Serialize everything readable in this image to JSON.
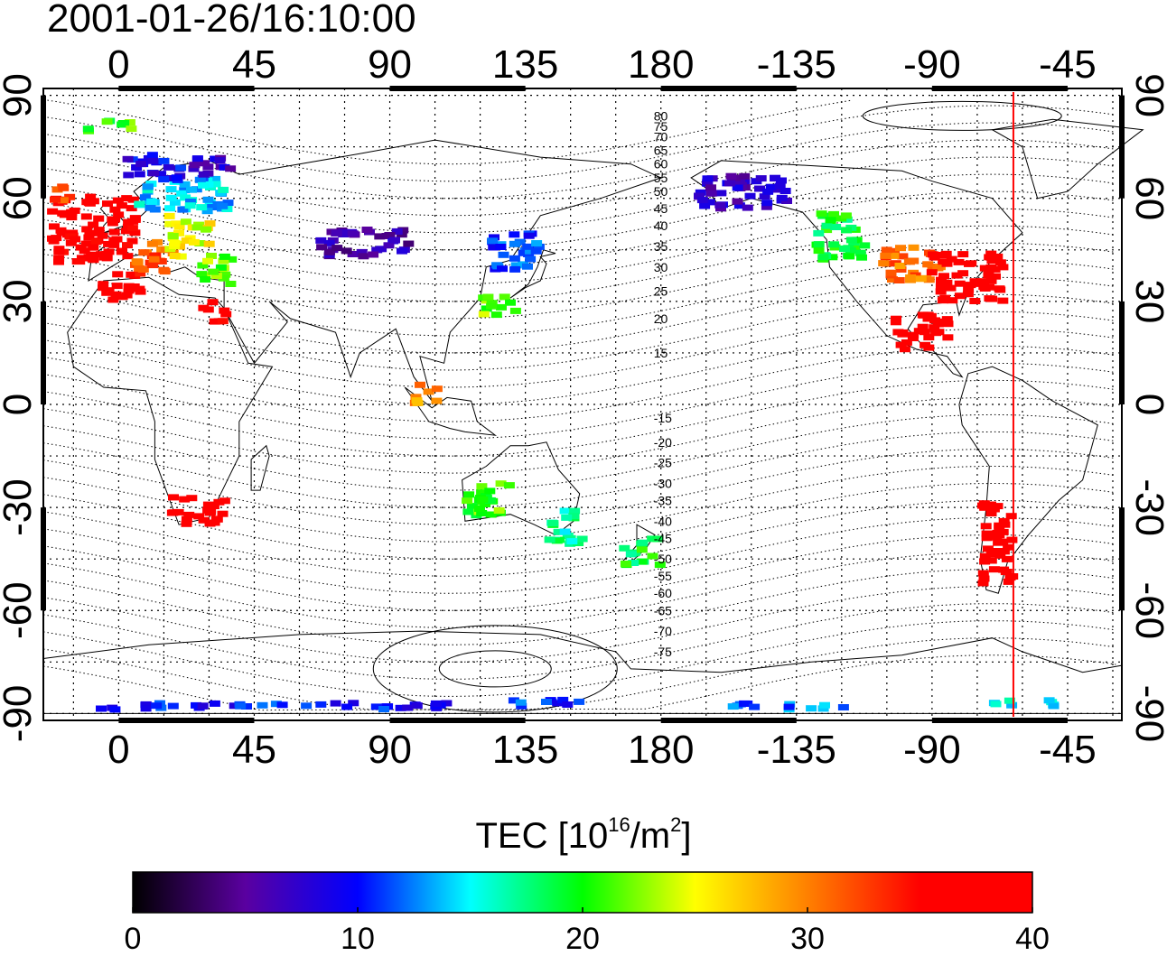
{
  "title": "2001-01-26/16:10:00",
  "map": {
    "lon_ticks": [
      {
        "lon": 0,
        "label": "0"
      },
      {
        "lon": 45,
        "label": "45"
      },
      {
        "lon": 90,
        "label": "90"
      },
      {
        "lon": 135,
        "label": "135"
      },
      {
        "lon": 180,
        "label": "180"
      },
      {
        "lon": 225,
        "label": "-135"
      },
      {
        "lon": 270,
        "label": "-90"
      },
      {
        "lon": 315,
        "label": "-45"
      }
    ],
    "lat_ticks": [
      {
        "lat": 90,
        "label": "90"
      },
      {
        "lat": 60,
        "label": "60"
      },
      {
        "lat": 30,
        "label": "30"
      },
      {
        "lat": 0,
        "label": "0"
      },
      {
        "lat": -30,
        "label": "-30"
      },
      {
        "lat": -60,
        "label": "-60"
      },
      {
        "lat": -90,
        "label": "-90"
      }
    ],
    "lon_range": [
      -25,
      333
    ],
    "lat_range": [
      -92,
      92
    ],
    "grid": "dotted-15deg",
    "terminator_lon": 297,
    "terminator_color": "#ff0000",
    "contour_labels": [
      {
        "label": "80",
        "lat": 84
      },
      {
        "label": "75",
        "lat": 81
      },
      {
        "label": "70",
        "lat": 78
      },
      {
        "label": "65",
        "lat": 74
      },
      {
        "label": "60",
        "lat": 70
      },
      {
        "label": "55",
        "lat": 66
      },
      {
        "label": "50",
        "lat": 62
      },
      {
        "label": "45",
        "lat": 57
      },
      {
        "label": "40",
        "lat": 52
      },
      {
        "label": "35",
        "lat": 46
      },
      {
        "label": "30",
        "lat": 40
      },
      {
        "label": "25",
        "lat": 33
      },
      {
        "label": "20",
        "lat": 25
      },
      {
        "label": "15",
        "lat": 15
      },
      {
        "label": "-15",
        "lat": -4
      },
      {
        "label": "-20",
        "lat": -11
      },
      {
        "label": "-25",
        "lat": -17
      },
      {
        "label": "-30",
        "lat": -23
      },
      {
        "label": "-35",
        "lat": -28
      },
      {
        "label": "-40",
        "lat": -34
      },
      {
        "label": "-45",
        "lat": -39
      },
      {
        "label": "-50",
        "lat": -45
      },
      {
        "label": "-55",
        "lat": -50
      },
      {
        "label": "-60",
        "lat": -55
      },
      {
        "label": "-65",
        "lat": -60
      },
      {
        "label": "-70",
        "lat": -66
      },
      {
        "label": "-75",
        "lat": -72
      }
    ],
    "tec_patches": [
      {
        "lon": -10,
        "lat": 52,
        "w": 28,
        "h": 20,
        "tec": 37
      },
      {
        "lon": 0,
        "lat": 35,
        "w": 14,
        "h": 8,
        "tec": 38
      },
      {
        "lon": 10,
        "lat": 44,
        "w": 14,
        "h": 10,
        "tec": 32
      },
      {
        "lon": 22,
        "lat": 50,
        "w": 14,
        "h": 12,
        "tec": 25
      },
      {
        "lon": 30,
        "lat": 40,
        "w": 12,
        "h": 8,
        "tec": 22
      },
      {
        "lon": 20,
        "lat": 62,
        "w": 30,
        "h": 10,
        "tec": 14
      },
      {
        "lon": 10,
        "lat": 70,
        "w": 18,
        "h": 8,
        "tec": 9
      },
      {
        "lon": 30,
        "lat": 70,
        "w": 14,
        "h": 6,
        "tec": 7
      },
      {
        "lon": -20,
        "lat": 62,
        "w": 6,
        "h": 6,
        "tec": 32
      },
      {
        "lon": -5,
        "lat": 82,
        "w": 16,
        "h": 3,
        "tec": 21
      },
      {
        "lon": 30,
        "lat": 28,
        "w": 8,
        "h": 6,
        "tec": 37
      },
      {
        "lon": 80,
        "lat": 48,
        "w": 30,
        "h": 8,
        "tec": 6
      },
      {
        "lon": 130,
        "lat": 45,
        "w": 16,
        "h": 12,
        "tec": 11
      },
      {
        "lon": 125,
        "lat": 30,
        "w": 12,
        "h": 6,
        "tec": 22
      },
      {
        "lon": 100,
        "lat": 4,
        "w": 8,
        "h": 6,
        "tec": 29
      },
      {
        "lon": 25,
        "lat": -30,
        "w": 18,
        "h": 8,
        "tec": 38
      },
      {
        "lon": 120,
        "lat": -27,
        "w": 16,
        "h": 10,
        "tec": 21
      },
      {
        "lon": 147,
        "lat": -35,
        "w": 12,
        "h": 10,
        "tec": 17
      },
      {
        "lon": 172,
        "lat": -42,
        "w": 12,
        "h": 8,
        "tec": 19
      },
      {
        "lon": 205,
        "lat": 63,
        "w": 30,
        "h": 10,
        "tec": 7
      },
      {
        "lon": 238,
        "lat": 50,
        "w": 16,
        "h": 14,
        "tec": 19
      },
      {
        "lon": 262,
        "lat": 42,
        "w": 20,
        "h": 10,
        "tec": 31
      },
      {
        "lon": 280,
        "lat": 38,
        "w": 24,
        "h": 14,
        "tec": 38
      },
      {
        "lon": 265,
        "lat": 22,
        "w": 18,
        "h": 10,
        "tec": 39
      },
      {
        "lon": 290,
        "lat": -40,
        "w": 10,
        "h": 26,
        "tec": 38
      },
      {
        "lon": 50,
        "lat": -87,
        "w": 120,
        "h": 2,
        "tec": 10
      },
      {
        "lon": 140,
        "lat": -86,
        "w": 30,
        "h": 2,
        "tec": 11
      },
      {
        "lon": 220,
        "lat": -87,
        "w": 40,
        "h": 2,
        "tec": 12
      },
      {
        "lon": 300,
        "lat": -86,
        "w": 25,
        "h": 2,
        "tec": 16
      }
    ]
  },
  "colorbar": {
    "label_main": "TEC  [10",
    "label_sup1": "16",
    "label_mid": "/m",
    "label_sup2": "2",
    "label_end": "]",
    "min": 0,
    "max": 40,
    "ticks": [
      "0",
      "10",
      "20",
      "30",
      "40"
    ],
    "stops": [
      "#000000",
      "#5a00a0",
      "#0000ff",
      "#00ffff",
      "#00ff00",
      "#ffff00",
      "#ff8000",
      "#ff0000",
      "#ff0000"
    ]
  }
}
